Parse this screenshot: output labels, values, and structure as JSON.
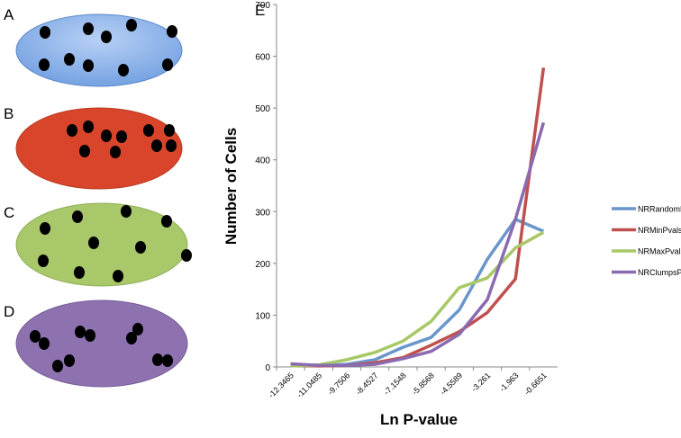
{
  "panels": [
    "A",
    "B",
    "C",
    "D"
  ],
  "chart_data": {
    "type": "line",
    "annotation": "E",
    "x_label": "Ln P-value",
    "y_label": "Number of Cells",
    "categories": [
      "-12.3465",
      "-11.0485",
      "-9.7506",
      "-8.4527",
      "-7.1548",
      "-5.8568",
      "-4.5589",
      "-3.261",
      "-1.963",
      "-0.6651"
    ],
    "series": [
      {
        "name": "NRRandomPvals",
        "color": "#6a96cc",
        "values": [
          5,
          3,
          5,
          14,
          38,
          57,
          110,
          208,
          285,
          262
        ]
      },
      {
        "name": "NRMinPvals",
        "color": "#c0504d",
        "values": [
          3,
          2,
          3,
          8,
          18,
          42,
          68,
          105,
          170,
          578
        ]
      },
      {
        "name": "NRMaxPvals",
        "color": "#a8c867",
        "values": [
          2,
          4,
          14,
          28,
          50,
          88,
          153,
          172,
          230,
          260
        ]
      },
      {
        "name": "NRClumpsPvals",
        "color": "#8a6bb0",
        "values": [
          6,
          3,
          3,
          5,
          16,
          30,
          63,
          130,
          285,
          472
        ]
      }
    ],
    "ylim": [
      0,
      700
    ],
    "yticks": [
      0,
      100,
      200,
      300,
      400,
      500,
      600,
      700
    ],
    "legend": "right"
  }
}
